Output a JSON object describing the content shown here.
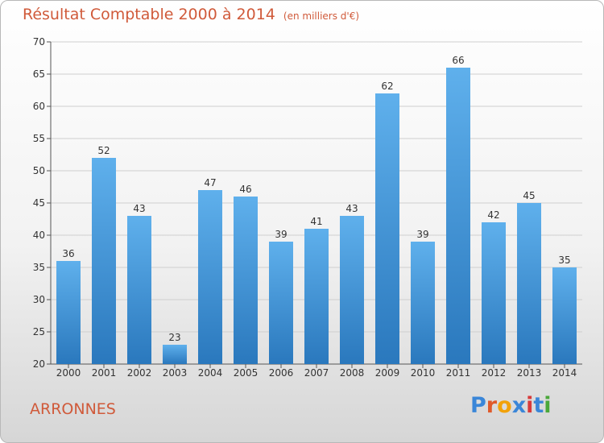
{
  "header": {
    "title": "Résultat Comptable 2000 à 2014",
    "subtitle": "(en milliers d'€)"
  },
  "footer": {
    "commune": "ARRONNES",
    "logo": "Proxiti",
    "logo_colors": [
      "#3a86d8",
      "#e05a2a",
      "#f2a20a",
      "#3a86d8",
      "#d83a3a",
      "#3a86d8",
      "#4aa83a"
    ]
  },
  "chart_data": {
    "type": "bar",
    "title": "Résultat Comptable 2000 à 2014",
    "subtitle": "(en milliers d'€)",
    "categories": [
      "2000",
      "2001",
      "2002",
      "2003",
      "2004",
      "2005",
      "2006",
      "2007",
      "2008",
      "2009",
      "2010",
      "2011",
      "2012",
      "2013",
      "2014"
    ],
    "values": [
      36,
      52,
      43,
      23,
      47,
      46,
      39,
      41,
      43,
      62,
      39,
      66,
      42,
      45,
      35
    ],
    "xlabel": "",
    "ylabel": "",
    "ylim": [
      20,
      70
    ],
    "yticks": [
      20,
      25,
      30,
      35,
      40,
      45,
      50,
      55,
      60,
      65,
      70
    ],
    "grid": true,
    "bar_color": "#4a9ee0"
  }
}
